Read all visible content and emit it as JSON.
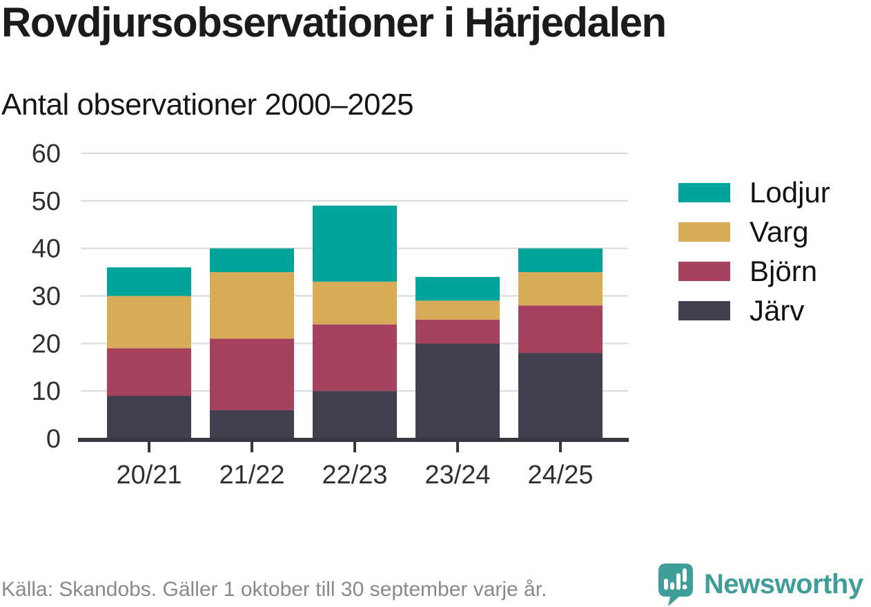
{
  "header": {
    "title": "Rovdjursobservationer i Härjedalen",
    "subtitle": "Antal observationer 2000–2025"
  },
  "chart_data": {
    "type": "bar",
    "stacked": true,
    "title": "Rovdjursobservationer i Härjedalen",
    "subtitle": "Antal observationer 2000–2025",
    "categories": [
      "20/21",
      "21/22",
      "22/23",
      "23/24",
      "24/25"
    ],
    "series": [
      {
        "name": "Järv",
        "color": "#42404e",
        "values": [
          9,
          6,
          10,
          20,
          18
        ]
      },
      {
        "name": "Björn",
        "color": "#a6415e",
        "values": [
          10,
          15,
          14,
          5,
          10
        ]
      },
      {
        "name": "Varg",
        "color": "#d8ab57",
        "values": [
          11,
          14,
          9,
          4,
          7
        ]
      },
      {
        "name": "Lodjur",
        "color": "#00a49a",
        "values": [
          6,
          5,
          16,
          5,
          5
        ]
      }
    ],
    "stack_totals": [
      36,
      40,
      49,
      34,
      40
    ],
    "legend_order": [
      "Lodjur",
      "Varg",
      "Björn",
      "Järv"
    ],
    "legend_position": "right",
    "xlabel": "",
    "ylabel": "",
    "ylim": [
      0,
      60
    ],
    "yticks": [
      0,
      10,
      20,
      30,
      40,
      50,
      60
    ],
    "grid": "horizontal"
  },
  "footer": {
    "source": "Källa: Skandobs. Gäller 1 oktober till 30 september varje år.",
    "brand": "Newsworthy"
  },
  "colors": {
    "teal": "#00a49a",
    "gold": "#d8ab57",
    "maroon": "#a6415e",
    "dark_slate": "#42404e",
    "grid": "#d9d9d9",
    "axis": "#38363f",
    "tick_label": "#2f2f2f",
    "source_text": "#898989",
    "brand_teal": "#3f9e97"
  }
}
